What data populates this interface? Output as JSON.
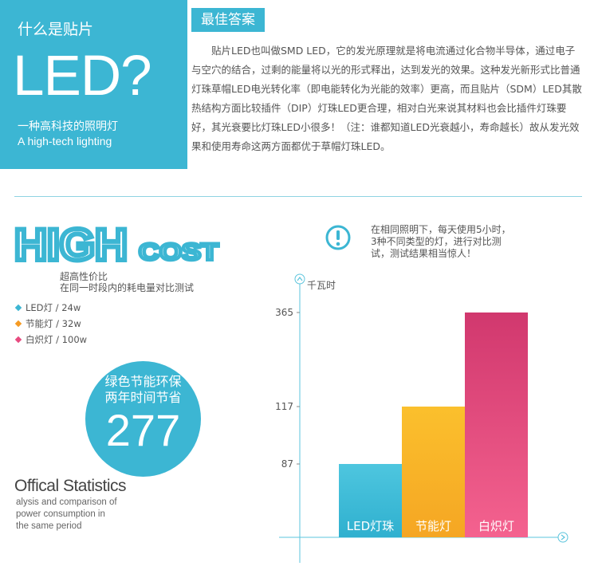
{
  "hero": {
    "question": "什么是贴片",
    "big": "LED?",
    "subtitle_cn": "一种高科技的照明灯",
    "subtitle_en": "A high-tech lighting"
  },
  "answer": {
    "badge": "最佳答案",
    "text": "贴片LED也叫做SMD LED，它的发光原理就是将电流通过化合物半导体，通过电子与空穴的结合，过剩的能量将以光的形式释出，达到发光的效果。这种发光新形式比普通灯珠草帽LED电光转化率（即电能转化为光能的效率）更高，而且贴片（SDM）LED其散热结构方面比较插件（DIP）灯珠LED更合理，相对白光来说其材料也会比插件灯珠要好，其光衰要比灯珠LED小很多！（注：谁都知道LED光衰越小，寿命越长）故从发光效果和使用寿命这两方面都优于草帽灯珠LED。"
  },
  "high_cost": {
    "word1": "HIGH",
    "word2": "COST",
    "sub1": "超高性价比",
    "sub2": "在同一时段内的耗电量对比测试"
  },
  "legend": [
    {
      "label": "LED灯 / 24w",
      "color": "#3cb6d3"
    },
    {
      "label": "节能灯 / 32w",
      "color": "#f59a23"
    },
    {
      "label": "白炽灯 / 100w",
      "color": "#e84a7f"
    }
  ],
  "circle": {
    "line1": "绿色节能环保",
    "line2": "两年时间节省",
    "number": "277"
  },
  "stats": {
    "title": "Offical Statistics",
    "lines": [
      "alysis and comparison of",
      "power consumption in",
      "the same period"
    ]
  },
  "note": {
    "icon": "exclamation-icon",
    "text": "在相同照明下，每天使用5小时，3种不同类型的灯，进行对比测试，测试结果相当惊人！"
  },
  "chart_data": {
    "type": "bar",
    "ylabel": "千瓦时",
    "categories": [
      "LED灯珠",
      "节能灯",
      "白炽灯"
    ],
    "values": [
      87,
      117,
      365
    ],
    "yticks": [
      87,
      117,
      365
    ],
    "colors": [
      [
        "#4ec6df",
        "#2fb0cf"
      ],
      [
        "#fbc02d",
        "#f5a623"
      ],
      [
        "#d1386e",
        "#f4628f"
      ]
    ]
  },
  "colors": {
    "accent": "#3cb6d3",
    "axis": "#5bc4dc"
  }
}
